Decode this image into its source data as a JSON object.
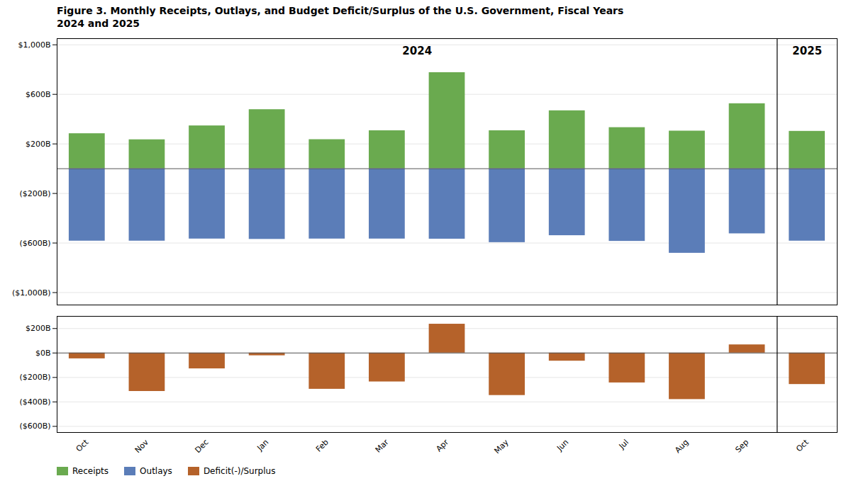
{
  "chart_data": [
    {
      "type": "bar",
      "title": "Figure 3. Monthly Receipts, Outlays, and Budget Deficit/Surplus of the U.S. Government, Fiscal Years\n2024 and 2025",
      "categories": [
        "Oct",
        "Nov",
        "Dec",
        "Jan",
        "Feb",
        "Mar",
        "Apr",
        "May",
        "Jun",
        "Jul",
        "Aug",
        "Sep",
        "Oct"
      ],
      "series": [
        {
          "name": "Receipts",
          "color": "#6aaa4f",
          "values": [
            283,
            234,
            346,
            477,
            235,
            307,
            776,
            307,
            468,
            332,
            304,
            525,
            302
          ]
        },
        {
          "name": "Outlays",
          "color": "#5b7db8",
          "values": [
            -584,
            -584,
            -567,
            -570,
            -567,
            -567,
            -568,
            -596,
            -540,
            -586,
            -682,
            -525,
            -584
          ]
        }
      ],
      "ylim": [
        -1100,
        1050
      ],
      "yticks": [
        {
          "value": -1000,
          "label": "($1,000B)"
        },
        {
          "value": -600,
          "label": "($600B)"
        },
        {
          "value": -200,
          "label": "($200B)"
        },
        {
          "value": 200,
          "label": "$200B"
        },
        {
          "value": 600,
          "label": "$600B"
        },
        {
          "value": 1000,
          "label": "$1,000B"
        }
      ],
      "grid": true,
      "tick_labels": "y",
      "legend": "lower left",
      "annotations": [
        {
          "text": "2024",
          "x": 5.5
        },
        {
          "text": "2025",
          "x": 12
        }
      ],
      "vlines": [
        11.5
      ]
    },
    {
      "type": "bar",
      "categories": [
        "Oct",
        "Nov",
        "Dec",
        "Jan",
        "Feb",
        "Mar",
        "Apr",
        "May",
        "Jun",
        "Jul",
        "Aug",
        "Sep",
        "Oct"
      ],
      "series": [
        {
          "name": "Deficit(-)/Surplus",
          "color": "#b5622a",
          "values": [
            -47,
            -314,
            -129,
            -22,
            -296,
            -236,
            236,
            -347,
            -66,
            -244,
            -380,
            67,
            -257
          ]
        }
      ],
      "ylim": [
        -650,
        300
      ],
      "yticks": [
        {
          "value": -600,
          "label": "($600B)"
        },
        {
          "value": -400,
          "label": "($400B)"
        },
        {
          "value": -200,
          "label": "($200B)"
        },
        {
          "value": 0,
          "label": "$0B"
        },
        {
          "value": 200,
          "label": "$200B"
        }
      ],
      "grid": true,
      "legend": "lower left",
      "vlines": [
        11.5
      ]
    }
  ]
}
